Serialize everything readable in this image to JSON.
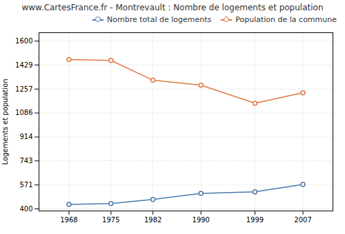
{
  "chart_data": {
    "type": "line",
    "title": "www.CartesFrance.fr - Montrevault : Nombre de logements et population",
    "ylabel": "Logements et population",
    "x": [
      1968,
      1975,
      1982,
      1990,
      1999,
      2007
    ],
    "series": [
      {
        "name": "Nombre total de logements",
        "color": "#4a7aad",
        "values": [
          432,
          438,
          468,
          510,
          522,
          575
        ],
        "marker": "o"
      },
      {
        "name": "Population de la commune",
        "color": "#e07840",
        "values": [
          1468,
          1462,
          1320,
          1285,
          1155,
          1230
        ],
        "marker": "o"
      }
    ],
    "xlim": [
      1963,
      2012
    ],
    "xticks": [
      1968,
      1975,
      1982,
      1990,
      1999,
      2007
    ],
    "ylim": [
      385,
      1660
    ],
    "yticks": [
      400,
      571,
      743,
      914,
      1086,
      1257,
      1429,
      1600
    ],
    "grid": true,
    "legend": "upper right"
  }
}
